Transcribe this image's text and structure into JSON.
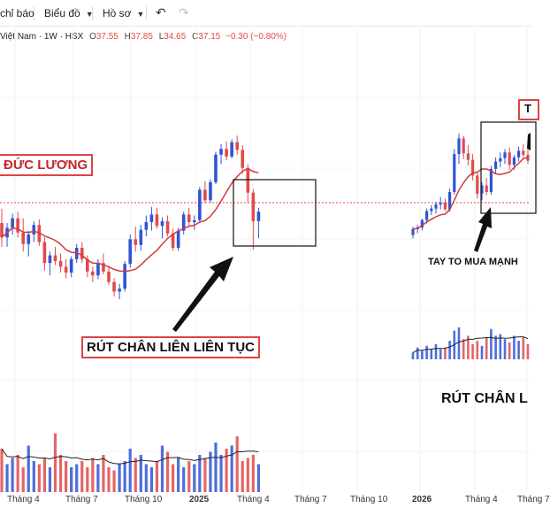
{
  "toolbar": {
    "indicators_label": "chỉ báo",
    "charts_label": "Biểu đồ",
    "profile_label": "Hồ sơ"
  },
  "legend": {
    "symbol_text": "Việt Nam · 1W · HSX",
    "open_label": "O",
    "open": "37.55",
    "high_label": "H",
    "high": "37.85",
    "low_label": "L",
    "low": "34.65",
    "close_label": "C",
    "close": "37.15",
    "change": "−0.30 (−0.80%)"
  },
  "annotations": {
    "company_name": "ĐỨC LƯƠNG",
    "wick_note_left": "RÚT CHÂN LIÊN LIÊN TỤC",
    "strong_buying": "TAY TO MUA MẠNH",
    "wick_note_right": "RÚT CHÂN L",
    "right_box_letter": "T"
  },
  "x_axis_labels": [
    "Tháng 4",
    "Tháng 7",
    "Tháng 10",
    "2025",
    "Tháng 4",
    "Tháng 7",
    "Tháng 10",
    "2026",
    "Tháng 4",
    "Tháng 7"
  ],
  "colors": {
    "up": "#2f55d4",
    "down": "#e14a4a",
    "ma": "#d43a3a",
    "vol_ma": "#222222",
    "box_border": "#111111",
    "note_border": "#d44444"
  },
  "icons": [
    "chevron-down-icon",
    "undo-icon",
    "redo-icon",
    "arrow-icon"
  ],
  "chart_data": {
    "type": "candlestick",
    "left_panel": {
      "candles": [
        [
          37,
          38.5,
          34.5,
          35.5
        ],
        [
          35.5,
          37,
          34.5,
          36.5
        ],
        [
          36.5,
          38,
          35.8,
          37.5
        ],
        [
          37.5,
          38.2,
          35.5,
          36
        ],
        [
          36,
          37.5,
          34,
          34.8
        ],
        [
          34.8,
          36.2,
          33.5,
          35.8
        ],
        [
          35.8,
          37.2,
          35,
          36.8
        ],
        [
          36.8,
          37.4,
          34.6,
          35
        ],
        [
          35,
          35.5,
          32,
          32.8
        ],
        [
          32.8,
          34,
          31.5,
          33.6
        ],
        [
          33.6,
          34.5,
          32.6,
          33
        ],
        [
          33,
          33.8,
          31.8,
          32.4
        ],
        [
          32.4,
          33.2,
          31.2,
          31.8
        ],
        [
          31.8,
          33.5,
          31.3,
          33.2
        ],
        [
          33.2,
          34.8,
          32.8,
          34.4
        ],
        [
          34.4,
          35,
          32.8,
          33.2
        ],
        [
          33.2,
          33.6,
          31.3,
          31.9
        ],
        [
          31.9,
          32.4,
          30.8,
          31.5
        ],
        [
          31.5,
          33.2,
          31.1,
          32.8
        ],
        [
          32.8,
          33.8,
          31.6,
          31.9
        ],
        [
          31.9,
          32.5,
          30.5,
          30.8
        ],
        [
          30.8,
          31.2,
          29.3,
          29.8
        ],
        [
          29.8,
          30.6,
          29,
          30.1
        ],
        [
          30.1,
          33,
          29.8,
          32.7
        ],
        [
          32.7,
          35.8,
          32.3,
          35.3
        ],
        [
          35.3,
          36.6,
          34,
          34.7
        ],
        [
          34.7,
          36.8,
          34.1,
          36.3
        ],
        [
          36.3,
          37.8,
          35.6,
          37.1
        ],
        [
          37.1,
          38.7,
          36.2,
          37.9
        ],
        [
          37.9,
          38.6,
          36.4,
          36.7
        ],
        [
          36.7,
          37.6,
          35.4,
          37.2
        ],
        [
          37.2,
          37.8,
          35.6,
          35.9
        ],
        [
          35.9,
          36.4,
          34.1,
          34.4
        ],
        [
          34.4,
          36.5,
          34.1,
          36.2
        ],
        [
          36.2,
          38.2,
          35.8,
          37.9
        ],
        [
          37.9,
          38.6,
          36.6,
          37.1
        ],
        [
          37.1,
          37.8,
          36.3,
          37.3
        ],
        [
          37.3,
          40.8,
          37,
          40.5
        ],
        [
          40.5,
          41.4,
          39.1,
          39.4
        ],
        [
          39.4,
          41.6,
          39.2,
          41.3
        ],
        [
          41.3,
          44.5,
          41.1,
          44.2
        ],
        [
          44.2,
          45.3,
          43.2,
          44.8
        ],
        [
          44.8,
          45.6,
          43.6,
          44
        ],
        [
          44,
          45.8,
          43.8,
          45.5
        ],
        [
          45.5,
          46.2,
          44.2,
          44.7
        ],
        [
          44.7,
          45.2,
          42.2,
          42.8
        ],
        [
          42.8,
          43.2,
          39.2,
          40.2
        ],
        [
          40.2,
          40.6,
          34.2,
          37.2
        ],
        [
          37.2,
          38.6,
          35.4,
          38.2
        ]
      ],
      "volumes": [
        70,
        45,
        55,
        60,
        40,
        75,
        50,
        45,
        55,
        40,
        95,
        60,
        50,
        40,
        45,
        50,
        40,
        55,
        45,
        60,
        40,
        35,
        45,
        50,
        70,
        55,
        60,
        45,
        40,
        50,
        75,
        65,
        45,
        55,
        40,
        50,
        45,
        60,
        55,
        65,
        80,
        60,
        70,
        75,
        90,
        50,
        55,
        60,
        45
      ]
    },
    "right_panel": {
      "candles": [
        [
          35.2,
          36.2,
          34.8,
          35.9
        ],
        [
          35.9,
          36.4,
          35.4,
          36.1
        ],
        [
          36.1,
          37.2,
          35.8,
          37
        ],
        [
          37,
          38.4,
          36.6,
          38.1
        ],
        [
          38.1,
          38.8,
          37.6,
          38.4
        ],
        [
          38.4,
          39.2,
          37.8,
          38.9
        ],
        [
          38.9,
          39.8,
          38.3,
          39.1
        ],
        [
          39.1,
          39.6,
          38.1,
          38.3
        ],
        [
          38.3,
          40.8,
          38,
          40.4
        ],
        [
          40.4,
          45.6,
          40.1,
          45
        ],
        [
          45,
          47.5,
          43.8,
          46.9
        ],
        [
          46.9,
          47.2,
          44.4,
          45.1
        ],
        [
          45.1,
          46.1,
          43.6,
          44.3
        ],
        [
          44.3,
          45,
          41.8,
          42.4
        ],
        [
          42.4,
          42.8,
          39.6,
          40.2
        ],
        [
          40.2,
          41.6,
          39.4,
          41.2
        ],
        [
          41.2,
          42.1,
          40,
          40.4
        ],
        [
          40.4,
          43.6,
          40.1,
          43.2
        ],
        [
          43.2,
          44.6,
          42.6,
          44.1
        ],
        [
          44.1,
          45.2,
          43.4,
          44.5
        ],
        [
          44.5,
          45.6,
          43.8,
          45.2
        ],
        [
          45.2,
          45.8,
          43.1,
          43.7
        ],
        [
          43.7,
          44.9,
          43.1,
          44.6
        ],
        [
          44.6,
          45.9,
          44.1,
          45.4
        ],
        [
          45.4,
          46.2,
          44.6,
          44.9
        ],
        [
          44.9,
          45.5,
          43.8,
          44.2
        ]
      ],
      "volumes": [
        20,
        35,
        25,
        40,
        30,
        45,
        30,
        35,
        55,
        85,
        95,
        60,
        70,
        45,
        55,
        40,
        65,
        90,
        70,
        75,
        60,
        50,
        70,
        55,
        65,
        45
      ]
    }
  }
}
